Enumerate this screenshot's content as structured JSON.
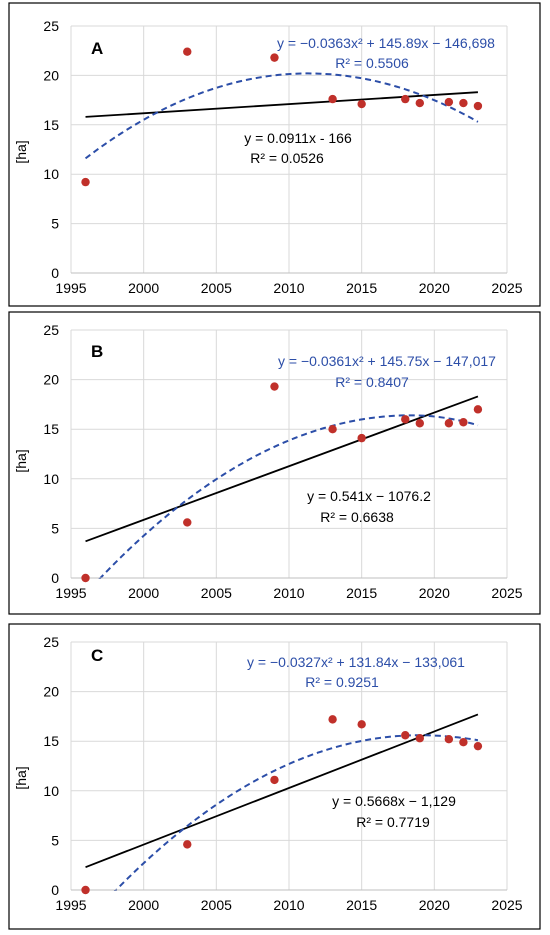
{
  "chart_data": [
    {
      "type": "scatter",
      "panel_label": "A",
      "ylabel": "[ha]",
      "xlim": [
        1995,
        2025
      ],
      "ylim": [
        0,
        25
      ],
      "xticks": [
        "1995",
        "2000",
        "2005",
        "2010",
        "2015",
        "2020",
        "2025"
      ],
      "yticks": [
        "0",
        "5",
        "10",
        "15",
        "20",
        "25"
      ],
      "grid": true,
      "points": {
        "color": "#c0302a",
        "x": [
          1996,
          2003,
          2009,
          2013,
          2015,
          2018,
          2019,
          2021,
          2022,
          2023
        ],
        "y": [
          9.2,
          22.4,
          21.8,
          17.6,
          17.1,
          17.6,
          17.2,
          17.3,
          17.2,
          16.9
        ]
      },
      "linear_fit": {
        "color": "#000000",
        "slope": 0.0911,
        "intercept": -166,
        "x_range": [
          1996,
          2023
        ],
        "y_ends": [
          15.8,
          18.3
        ]
      },
      "poly_fit": {
        "color": "#2c4ea8",
        "a": -0.0363,
        "b": 145.89,
        "c": -146698,
        "vertex_x": 2011.3,
        "x_range": [
          1996,
          2023
        ],
        "y_ends": [
          11.6,
          20.2,
          15.3
        ]
      },
      "annotations": {
        "poly_eq": "y = −0.0363x² + 145.89x − 146,698",
        "poly_r2": "R² = 0.5506",
        "lin_eq": "y = 0.0911x - 166",
        "lin_r2": "R² = 0.0526"
      }
    },
    {
      "type": "scatter",
      "panel_label": "B",
      "ylabel": "[ha]",
      "xlim": [
        1995,
        2025
      ],
      "ylim": [
        0,
        25
      ],
      "xticks": [
        "1995",
        "2000",
        "2005",
        "2010",
        "2015",
        "2020",
        "2025"
      ],
      "yticks": [
        "0",
        "5",
        "10",
        "15",
        "20",
        "25"
      ],
      "grid": true,
      "points": {
        "color": "#c0302a",
        "x": [
          1996,
          2003,
          2009,
          2013,
          2015,
          2018,
          2019,
          2021,
          2022,
          2023
        ],
        "y": [
          0,
          5.6,
          19.3,
          15.0,
          14.1,
          16.0,
          15.6,
          15.6,
          15.7,
          17.0
        ]
      },
      "linear_fit": {
        "color": "#000000",
        "slope": 0.541,
        "intercept": -1076.2,
        "x_range": [
          1996,
          2023
        ],
        "y_ends": [
          3.7,
          18.3
        ]
      },
      "poly_fit": {
        "color": "#2c4ea8",
        "a": -0.0361,
        "b": 145.75,
        "c": -147017,
        "vertex_x": 2018.4,
        "x_range": [
          1996,
          2023
        ],
        "y_ends": [
          -1.6,
          16.4,
          15.4
        ]
      },
      "annotations": {
        "poly_eq": "y = −0.0361x² + 145.75x − 147,017",
        "poly_r2": "R² = 0.8407",
        "lin_eq": "y = 0.541x − 1076.2",
        "lin_r2": "R² = 0.6638"
      }
    },
    {
      "type": "scatter",
      "panel_label": "C",
      "ylabel": "[ha]",
      "xlim": [
        1995,
        2025
      ],
      "ylim": [
        0,
        25
      ],
      "xticks": [
        "1995",
        "2000",
        "2005",
        "2010",
        "2015",
        "2020",
        "2025"
      ],
      "yticks": [
        "0",
        "5",
        "10",
        "15",
        "20",
        "25"
      ],
      "grid": true,
      "points": {
        "color": "#c0302a",
        "x": [
          1996,
          2003,
          2009,
          2013,
          2015,
          2018,
          2019,
          2021,
          2022,
          2023
        ],
        "y": [
          0,
          4.6,
          11.1,
          17.2,
          16.7,
          15.6,
          15.3,
          15.2,
          14.9,
          14.5
        ]
      },
      "linear_fit": {
        "color": "#000000",
        "slope": 0.5668,
        "intercept": -1129,
        "x_range": [
          1996,
          2023
        ],
        "y_ends": [
          2.3,
          17.7
        ]
      },
      "poly_fit": {
        "color": "#2c4ea8",
        "a": -0.0327,
        "b": 131.84,
        "c": -133061,
        "vertex_x": 2019.0,
        "x_range": [
          1996,
          2023
        ],
        "y_ends": [
          -3.3,
          15.6,
          15.1
        ]
      },
      "annotations": {
        "poly_eq": "y = −0.0327x² + 131.84x − 133,061",
        "poly_r2": "R² = 0.9251",
        "lin_eq": "y = 0.5668x − 1,129",
        "lin_r2": "R² = 0.7719"
      }
    }
  ]
}
